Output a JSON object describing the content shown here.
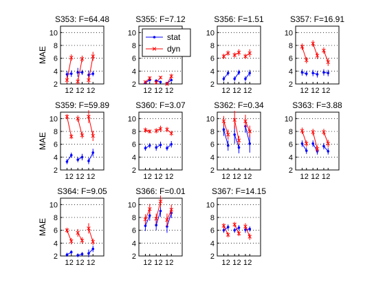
{
  "figure": {
    "ylabel": "MAE",
    "x_ticklabels": [
      "1",
      "2",
      "1",
      "2",
      "1",
      "2"
    ],
    "y_ticks": [
      2,
      4,
      6,
      8,
      10
    ],
    "ylim": [
      2,
      11
    ],
    "xlim": [
      0.4,
      4.4
    ],
    "colors": {
      "stat": "#0000ff",
      "dyn": "#ff0000",
      "grid": "#000000",
      "axis": "#000000"
    },
    "legend": {
      "panel": "S355",
      "placement": "top",
      "entries": [
        "stat",
        "dyn"
      ]
    }
  },
  "chart_data": [
    {
      "title": "S353: F=64.48",
      "type": "line",
      "x": [
        1,
        2,
        1,
        2,
        1,
        2
      ],
      "series": [
        {
          "name": "stat",
          "pairs": [
            [
              3.5,
              3.6
            ],
            [
              3.8,
              3.8
            ],
            [
              3.4,
              3.6
            ]
          ],
          "err": [
            0.5,
            0.5,
            0.7,
            0.4,
            0.7,
            0.4
          ]
        },
        {
          "name": "dyn",
          "pairs": [
            [
              2.6,
              6.1
            ],
            [
              2.4,
              5.9
            ],
            [
              2.6,
              6.3
            ]
          ],
          "err": [
            0.5,
            0.5,
            0.5,
            0.5,
            0.5,
            0.7
          ]
        }
      ]
    },
    {
      "title": "S355: F=7.12",
      "type": "line",
      "x": [
        1,
        2,
        1,
        2,
        1,
        2
      ],
      "series": [
        {
          "name": "stat",
          "pairs": [
            [
              2.2,
              2.6
            ],
            [
              2.5,
              2.3
            ],
            [
              2.1,
              2.6
            ]
          ],
          "err": [
            0.2,
            0.2,
            0.2,
            0.2,
            0.2,
            0.2
          ]
        },
        {
          "name": "dyn",
          "pairs": [
            [
              2.3,
              2.9
            ],
            [
              2.2,
              3.0
            ],
            [
              2.0,
              3.2
            ]
          ],
          "err": [
            0.2,
            0.3,
            0.2,
            0.2,
            0.2,
            0.4
          ]
        }
      ]
    },
    {
      "title": "S356: F=1.51",
      "type": "line",
      "x": [
        1,
        2,
        1,
        2,
        1,
        2
      ],
      "series": [
        {
          "name": "stat",
          "pairs": [
            [
              2.8,
              3.7
            ],
            [
              2.8,
              3.8
            ],
            [
              2.8,
              3.7
            ]
          ],
          "err": [
            0.4,
            0.4,
            0.4,
            0.4,
            0.4,
            0.5
          ]
        },
        {
          "name": "dyn",
          "pairs": [
            [
              6.3,
              6.8
            ],
            [
              6.5,
              6.9
            ],
            [
              6.3,
              6.8
            ]
          ],
          "err": [
            0.4,
            0.4,
            0.4,
            0.5,
            0.4,
            0.6
          ]
        }
      ]
    },
    {
      "title": "S357: F=16.91",
      "type": "line",
      "x": [
        1,
        2,
        1,
        2,
        1,
        2
      ],
      "series": [
        {
          "name": "stat",
          "pairs": [
            [
              3.8,
              3.6
            ],
            [
              3.7,
              3.5
            ],
            [
              3.8,
              3.7
            ]
          ],
          "err": [
            0.5,
            0.4,
            0.5,
            0.5,
            0.5,
            0.5
          ]
        },
        {
          "name": "dyn",
          "pairs": [
            [
              7.8,
              5.7
            ],
            [
              8.3,
              6.4
            ],
            [
              7.2,
              5.4
            ]
          ],
          "err": [
            0.5,
            0.5,
            0.5,
            0.5,
            0.5,
            0.6
          ]
        }
      ]
    },
    {
      "title": "S359: F=59.89",
      "type": "line",
      "x": [
        1,
        2,
        1,
        2,
        1,
        2
      ],
      "series": [
        {
          "name": "stat",
          "pairs": [
            [
              3.3,
              4.3
            ],
            [
              3.6,
              4.0
            ],
            [
              3.4,
              4.7
            ]
          ],
          "err": [
            0.4,
            0.4,
            0.4,
            0.5,
            0.5,
            0.6
          ]
        },
        {
          "name": "dyn",
          "pairs": [
            [
              10.3,
              7.2
            ],
            [
              10.0,
              7.4
            ],
            [
              10.3,
              7.3
            ]
          ],
          "err": [
            0.4,
            0.4,
            0.5,
            0.5,
            1.0,
            0.8
          ]
        }
      ]
    },
    {
      "title": "S360: F=3.07",
      "type": "line",
      "x": [
        1,
        2,
        1,
        2,
        1,
        2
      ],
      "series": [
        {
          "name": "stat",
          "pairs": [
            [
              5.4,
              5.8
            ],
            [
              5.5,
              5.9
            ],
            [
              5.4,
              6.0
            ]
          ],
          "err": [
            0.4,
            0.4,
            0.5,
            0.5,
            0.4,
            0.5
          ]
        },
        {
          "name": "dyn",
          "pairs": [
            [
              8.2,
              8.0
            ],
            [
              8.1,
              8.4
            ],
            [
              8.3,
              7.7
            ]
          ],
          "err": [
            0.4,
            0.3,
            0.4,
            0.5,
            0.4,
            0.4
          ]
        }
      ]
    },
    {
      "title": "S362: F=0.34",
      "type": "line",
      "x": [
        1,
        2,
        1,
        2,
        1,
        2
      ],
      "series": [
        {
          "name": "stat",
          "pairs": [
            [
              8.3,
              5.8
            ],
            [
              7.5,
              5.5
            ],
            [
              8.8,
              6.1
            ]
          ],
          "err": [
            1.0,
            0.8,
            1.4,
            0.9,
            1.0,
            1.4
          ]
        },
        {
          "name": "dyn",
          "pairs": [
            [
              9.6,
              7.5
            ],
            [
              9.8,
              6.6
            ],
            [
              9.6,
              8.0
            ]
          ],
          "err": [
            0.8,
            0.8,
            1.4,
            0.7,
            1.0,
            0.9
          ]
        }
      ]
    },
    {
      "title": "S363: F=3.88",
      "type": "line",
      "x": [
        1,
        2,
        1,
        2,
        1,
        2
      ],
      "series": [
        {
          "name": "stat",
          "pairs": [
            [
              6.1,
              5.0
            ],
            [
              6.1,
              4.9
            ],
            [
              5.7,
              4.9
            ]
          ],
          "err": [
            0.5,
            0.5,
            0.5,
            0.5,
            0.5,
            0.5
          ]
        },
        {
          "name": "dyn",
          "pairs": [
            [
              8.1,
              6.1
            ],
            [
              7.9,
              5.3
            ],
            [
              7.9,
              6.1
            ]
          ],
          "err": [
            0.5,
            0.5,
            0.5,
            0.5,
            0.5,
            0.6
          ]
        }
      ]
    },
    {
      "title": "S364: F=9.05",
      "type": "line",
      "x": [
        1,
        2,
        1,
        2,
        1,
        2
      ],
      "series": [
        {
          "name": "stat",
          "pairs": [
            [
              2.2,
              2.6
            ],
            [
              2.1,
              2.3
            ],
            [
              2.4,
              3.1
            ]
          ],
          "err": [
            0.3,
            0.3,
            0.3,
            0.3,
            0.6,
            0.5
          ]
        },
        {
          "name": "dyn",
          "pairs": [
            [
              6.0,
              4.3
            ],
            [
              5.6,
              4.4
            ],
            [
              6.3,
              4.2
            ]
          ],
          "err": [
            0.4,
            0.5,
            0.6,
            0.5,
            0.8,
            0.5
          ]
        }
      ]
    },
    {
      "title": "S366: F=0.01",
      "type": "line",
      "x": [
        1,
        2,
        1,
        2,
        1,
        2
      ],
      "series": [
        {
          "name": "stat",
          "pairs": [
            [
              6.7,
              8.3
            ],
            [
              6.8,
              9.0
            ],
            [
              6.6,
              8.7
            ]
          ],
          "err": [
            0.8,
            0.8,
            0.8,
            0.9,
            1.0,
            0.8
          ]
        },
        {
          "name": "dyn",
          "pairs": [
            [
              7.7,
              9.3
            ],
            [
              7.8,
              10.5
            ],
            [
              7.6,
              9.2
            ]
          ],
          "err": [
            0.8,
            0.8,
            0.8,
            0.9,
            1.0,
            0.8
          ]
        }
      ]
    },
    {
      "title": "S367: F=14.15",
      "type": "line",
      "x": [
        1,
        2,
        1,
        2,
        1,
        2
      ],
      "series": [
        {
          "name": "stat",
          "pairs": [
            [
              6.0,
              6.5
            ],
            [
              6.0,
              6.4
            ],
            [
              6.1,
              6.2
            ]
          ],
          "err": [
            0.4,
            0.4,
            0.4,
            0.4,
            0.5,
            0.4
          ]
        },
        {
          "name": "dyn",
          "pairs": [
            [
              6.7,
              5.3
            ],
            [
              6.9,
              5.5
            ],
            [
              6.6,
              5.0
            ]
          ],
          "err": [
            0.4,
            0.4,
            0.4,
            0.4,
            0.5,
            0.5
          ]
        }
      ]
    }
  ]
}
